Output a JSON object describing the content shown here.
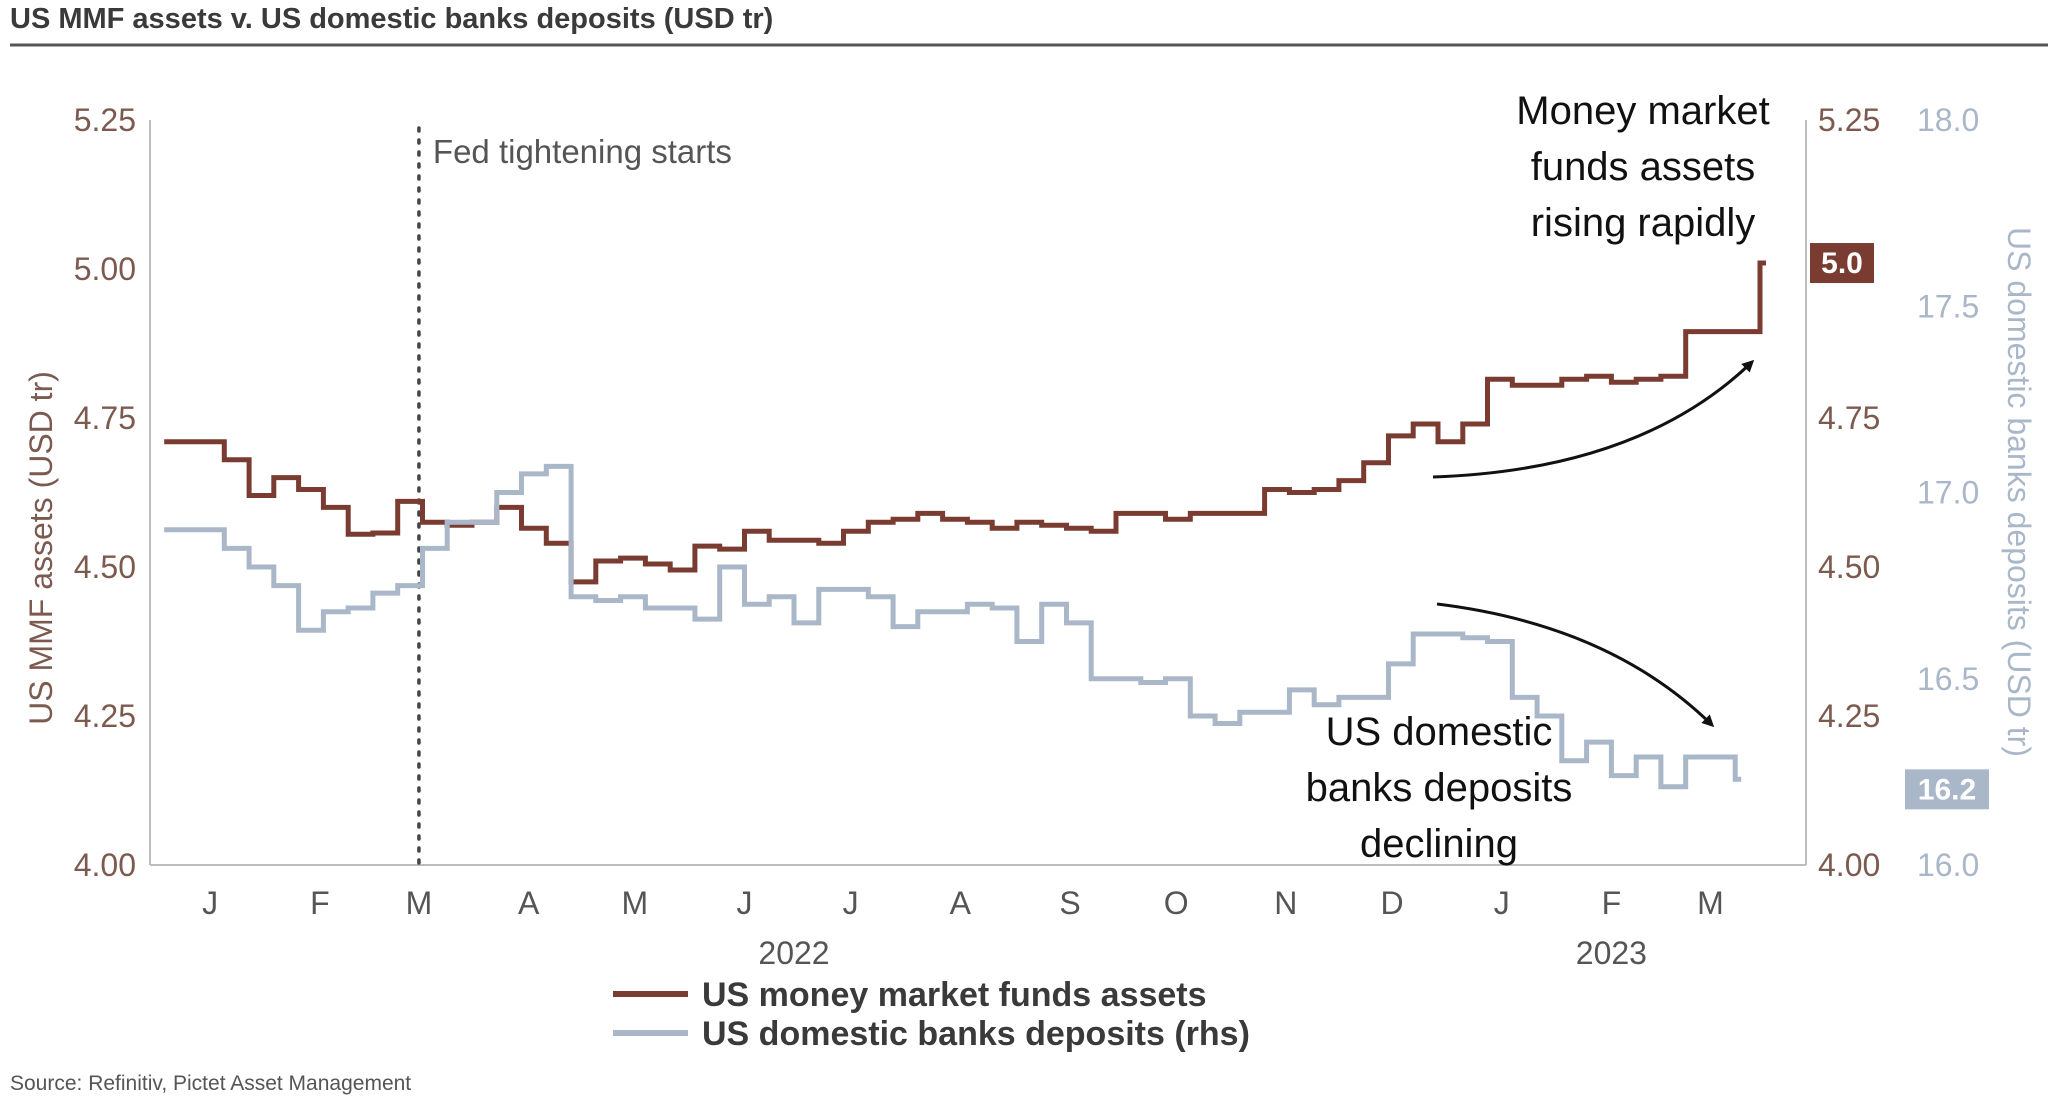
{
  "header": {
    "title": "US MMF assets v. US domestic banks deposits (USD tr)"
  },
  "footer": {
    "source": "Source: Refinitiv, Pictet Asset Management"
  },
  "chart_data": {
    "type": "line",
    "title": "US MMF assets v. US domestic banks deposits (USD tr)",
    "x_axis": {
      "months": [
        "J",
        "F",
        "M",
        "A",
        "M",
        "J",
        "J",
        "A",
        "S",
        "O",
        "N",
        "D",
        "J",
        "F",
        "M"
      ],
      "years": [
        "2022",
        "2023"
      ],
      "range": [
        "2022-01-01",
        "2023-03-20"
      ]
    },
    "y_axis_left": {
      "label": "US MMF assets (USD tr)",
      "range": [
        4.0,
        5.25
      ],
      "ticks": [
        "4.00",
        "4.25",
        "4.50",
        "4.75",
        "5.00",
        "5.25"
      ]
    },
    "y_axis_right_1": {
      "range": [
        4.0,
        5.25
      ],
      "ticks": [
        "4.00",
        "4.25",
        "4.50",
        "4.75",
        "5.25"
      ]
    },
    "y_axis_right_2": {
      "label": "US domestic banks deposits (USD tr)",
      "range": [
        16.0,
        18.0
      ],
      "ticks": [
        "16.0",
        "16.5",
        "17.0",
        "17.5",
        "18.0"
      ]
    },
    "series": [
      {
        "name": "US money market funds assets",
        "axis": "left",
        "color": "#7a3b31",
        "end_label": "5.0",
        "points": [
          [
            "2021-12-19",
            4.71
          ],
          [
            "2022-01-05",
            4.68
          ],
          [
            "2022-01-12",
            4.62
          ],
          [
            "2022-01-19",
            4.65
          ],
          [
            "2022-01-26",
            4.63
          ],
          [
            "2022-02-02",
            4.6
          ],
          [
            "2022-02-09",
            4.555
          ],
          [
            "2022-02-16",
            4.557
          ],
          [
            "2022-02-23",
            4.61
          ],
          [
            "2022-03-02",
            4.575
          ],
          [
            "2022-03-09",
            4.57
          ],
          [
            "2022-03-16",
            4.575
          ],
          [
            "2022-03-23",
            4.6
          ],
          [
            "2022-03-30",
            4.565
          ],
          [
            "2022-04-06",
            4.54
          ],
          [
            "2022-04-13",
            4.475
          ],
          [
            "2022-04-20",
            4.51
          ],
          [
            "2022-04-27",
            4.515
          ],
          [
            "2022-05-04",
            4.505
          ],
          [
            "2022-05-11",
            4.495
          ],
          [
            "2022-05-18",
            4.535
          ],
          [
            "2022-05-25",
            4.53
          ],
          [
            "2022-06-01",
            4.56
          ],
          [
            "2022-06-08",
            4.545
          ],
          [
            "2022-06-15",
            4.545
          ],
          [
            "2022-06-22",
            4.54
          ],
          [
            "2022-06-29",
            4.56
          ],
          [
            "2022-07-06",
            4.575
          ],
          [
            "2022-07-13",
            4.58
          ],
          [
            "2022-07-20",
            4.59
          ],
          [
            "2022-07-27",
            4.58
          ],
          [
            "2022-08-03",
            4.575
          ],
          [
            "2022-08-10",
            4.565
          ],
          [
            "2022-08-17",
            4.575
          ],
          [
            "2022-08-24",
            4.57
          ],
          [
            "2022-08-31",
            4.565
          ],
          [
            "2022-09-07",
            4.56
          ],
          [
            "2022-09-14",
            4.59
          ],
          [
            "2022-09-21",
            4.59
          ],
          [
            "2022-09-28",
            4.58
          ],
          [
            "2022-10-05",
            4.59
          ],
          [
            "2022-10-12",
            4.59
          ],
          [
            "2022-10-19",
            4.59
          ],
          [
            "2022-10-26",
            4.63
          ],
          [
            "2022-11-02",
            4.625
          ],
          [
            "2022-11-09",
            4.63
          ],
          [
            "2022-11-16",
            4.645
          ],
          [
            "2022-11-23",
            4.675
          ],
          [
            "2022-11-30",
            4.72
          ],
          [
            "2022-12-07",
            4.74
          ],
          [
            "2022-12-14",
            4.71
          ],
          [
            "2022-12-21",
            4.74
          ],
          [
            "2022-12-28",
            4.815
          ],
          [
            "2023-01-04",
            4.805
          ],
          [
            "2023-01-11",
            4.805
          ],
          [
            "2023-01-18",
            4.815
          ],
          [
            "2023-01-25",
            4.82
          ],
          [
            "2023-02-01",
            4.81
          ],
          [
            "2023-02-08",
            4.815
          ],
          [
            "2023-02-15",
            4.82
          ],
          [
            "2023-02-22",
            4.895
          ],
          [
            "2023-03-01",
            4.895
          ],
          [
            "2023-03-08",
            4.895
          ],
          [
            "2023-03-15",
            5.01
          ]
        ]
      },
      {
        "name": "US domestic banks deposits (rhs)",
        "axis": "right",
        "color": "#a9b7c9",
        "end_label": "16.2",
        "points": [
          [
            "2021-12-19",
            16.9
          ],
          [
            "2022-01-05",
            16.85
          ],
          [
            "2022-01-12",
            16.8
          ],
          [
            "2022-01-19",
            16.75
          ],
          [
            "2022-01-26",
            16.63
          ],
          [
            "2022-02-02",
            16.68
          ],
          [
            "2022-02-09",
            16.69
          ],
          [
            "2022-02-16",
            16.73
          ],
          [
            "2022-02-23",
            16.75
          ],
          [
            "2022-03-02",
            16.85
          ],
          [
            "2022-03-09",
            16.92
          ],
          [
            "2022-03-16",
            16.92
          ],
          [
            "2022-03-23",
            17.0
          ],
          [
            "2022-03-30",
            17.05
          ],
          [
            "2022-04-06",
            17.07
          ],
          [
            "2022-04-13",
            16.72
          ],
          [
            "2022-04-20",
            16.71
          ],
          [
            "2022-04-27",
            16.72
          ],
          [
            "2022-05-04",
            16.69
          ],
          [
            "2022-05-11",
            16.69
          ],
          [
            "2022-05-18",
            16.66
          ],
          [
            "2022-05-25",
            16.8
          ],
          [
            "2022-06-01",
            16.7
          ],
          [
            "2022-06-08",
            16.72
          ],
          [
            "2022-06-15",
            16.65
          ],
          [
            "2022-06-22",
            16.74
          ],
          [
            "2022-06-29",
            16.74
          ],
          [
            "2022-07-06",
            16.72
          ],
          [
            "2022-07-13",
            16.64
          ],
          [
            "2022-07-20",
            16.68
          ],
          [
            "2022-07-27",
            16.68
          ],
          [
            "2022-08-03",
            16.7
          ],
          [
            "2022-08-10",
            16.69
          ],
          [
            "2022-08-17",
            16.6
          ],
          [
            "2022-08-24",
            16.7
          ],
          [
            "2022-08-31",
            16.65
          ],
          [
            "2022-09-07",
            16.5
          ],
          [
            "2022-09-14",
            16.5
          ],
          [
            "2022-09-21",
            16.49
          ],
          [
            "2022-09-28",
            16.5
          ],
          [
            "2022-10-05",
            16.4
          ],
          [
            "2022-10-12",
            16.38
          ],
          [
            "2022-10-19",
            16.41
          ],
          [
            "2022-10-26",
            16.41
          ],
          [
            "2022-11-02",
            16.47
          ],
          [
            "2022-11-09",
            16.43
          ],
          [
            "2022-11-16",
            16.45
          ],
          [
            "2022-11-23",
            16.45
          ],
          [
            "2022-11-30",
            16.54
          ],
          [
            "2022-12-07",
            16.62
          ],
          [
            "2022-12-14",
            16.62
          ],
          [
            "2022-12-21",
            16.61
          ],
          [
            "2022-12-28",
            16.6
          ],
          [
            "2023-01-04",
            16.45
          ],
          [
            "2023-01-11",
            16.4
          ],
          [
            "2023-01-18",
            16.28
          ],
          [
            "2023-01-25",
            16.33
          ],
          [
            "2023-02-01",
            16.24
          ],
          [
            "2023-02-08",
            16.29
          ],
          [
            "2023-02-15",
            16.21
          ],
          [
            "2023-02-22",
            16.29
          ],
          [
            "2023-03-01",
            16.29
          ],
          [
            "2023-03-08",
            16.23
          ]
        ]
      }
    ],
    "annotations": [
      {
        "text": "Fed tightening starts",
        "type": "vertical-dotted-line",
        "date": "2022-03-01"
      },
      {
        "text_lines": [
          "Money market",
          "funds assets",
          "rising rapidly"
        ],
        "arrow": "up-right"
      },
      {
        "text_lines": [
          "US domestic",
          "banks deposits",
          "declining"
        ],
        "arrow": "down-right"
      }
    ],
    "legend": {
      "position": "bottom-center",
      "items": [
        "US money market funds assets",
        "US domestic banks deposits (rhs)"
      ]
    }
  }
}
